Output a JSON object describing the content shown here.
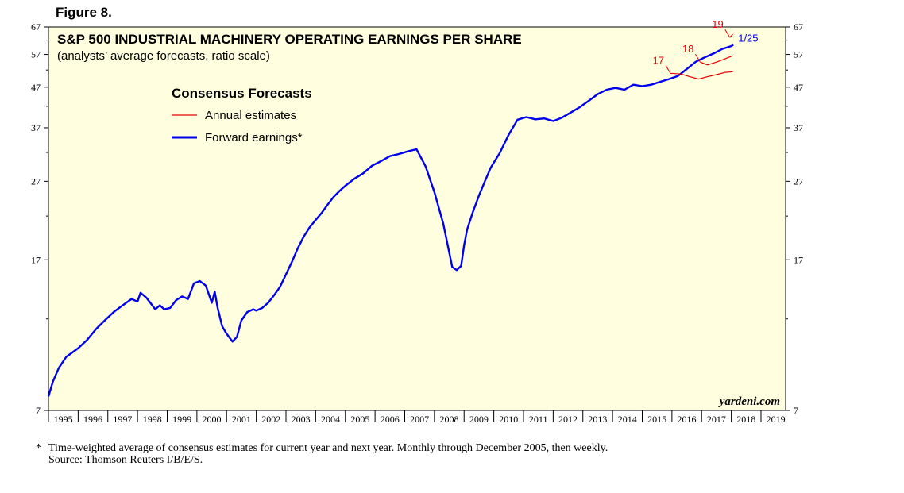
{
  "figure_label": "Figure 8.",
  "footnote": {
    "star": "*",
    "line1": "Time-weighted average of consensus estimates for current year and next year. Monthly through December 2005, then weekly.",
    "line2": "Source: Thomson Reuters I/B/E/S."
  },
  "colors": {
    "background": "#ffffe0",
    "forward": "#0000ee",
    "annual": "#e60000"
  },
  "chart_data": {
    "type": "line",
    "title": "S&P 500 INDUSTRIAL MACHINERY OPERATING EARNINGS PER SHARE",
    "subtitle": "(analysts’ average forecasts, ratio scale)",
    "legend_title": "Consensus Forecasts",
    "legend_position": "top-left",
    "watermark": "yardeni.com",
    "y_scale": "log",
    "ylim": [
      7,
      67
    ],
    "xlim": [
      1995.0,
      2019.83
    ],
    "y_ticks": [
      "7",
      "17",
      "27",
      "37",
      "47",
      "57",
      "67"
    ],
    "x_ticks": [
      "1995",
      "1996",
      "1997",
      "1998",
      "1999",
      "2000",
      "2001",
      "2002",
      "2003",
      "2004",
      "2005",
      "2006",
      "2007",
      "2008",
      "2009",
      "2010",
      "2011",
      "2012",
      "2013",
      "2014",
      "2015",
      "2016",
      "2017",
      "2018",
      "2019"
    ],
    "latest_label": "1/25",
    "series": [
      {
        "name": "Forward earnings*",
        "style": "thick",
        "x": [
          1995.0,
          1995.15,
          1995.35,
          1995.6,
          1996.0,
          1996.3,
          1996.6,
          1996.9,
          1997.2,
          1997.5,
          1997.8,
          1998.0,
          1998.1,
          1998.3,
          1998.6,
          1998.75,
          1998.9,
          1999.1,
          1999.3,
          1999.5,
          1999.7,
          1999.9,
          2000.1,
          2000.3,
          2000.5,
          2000.6,
          2000.7,
          2000.85,
          2001.0,
          2001.2,
          2001.35,
          2001.5,
          2001.7,
          2001.9,
          2002.0,
          2002.2,
          2002.4,
          2002.6,
          2002.8,
          2003.0,
          2003.2,
          2003.4,
          2003.6,
          2003.8,
          2004.0,
          2004.2,
          2004.4,
          2004.6,
          2004.8,
          2005.0,
          2005.3,
          2005.6,
          2005.9,
          2006.2,
          2006.5,
          2006.8,
          2007.1,
          2007.4,
          2007.7,
          2008.0,
          2008.3,
          2008.45,
          2008.6,
          2008.75,
          2008.9,
          2009.0,
          2009.1,
          2009.3,
          2009.5,
          2009.7,
          2009.9,
          2010.2,
          2010.5,
          2010.8,
          2011.1,
          2011.4,
          2011.7,
          2012.0,
          2012.3,
          2012.6,
          2012.9,
          2013.2,
          2013.5,
          2013.8,
          2014.1,
          2014.4,
          2014.7,
          2015.0,
          2015.3,
          2015.6,
          2015.9,
          2016.2,
          2016.5,
          2016.8,
          2017.1,
          2017.4,
          2017.7,
          2018.0,
          2018.07
        ],
        "values": [
          7.6,
          8.3,
          9.0,
          9.6,
          10.1,
          10.6,
          11.3,
          11.9,
          12.5,
          13.0,
          13.5,
          13.3,
          14.0,
          13.6,
          12.7,
          13.0,
          12.7,
          12.8,
          13.4,
          13.7,
          13.5,
          14.8,
          15.0,
          14.6,
          13.2,
          14.1,
          12.8,
          11.5,
          11.0,
          10.5,
          10.8,
          11.9,
          12.5,
          12.7,
          12.6,
          12.8,
          13.2,
          13.8,
          14.5,
          15.6,
          16.8,
          18.2,
          19.5,
          20.6,
          21.5,
          22.4,
          23.5,
          24.6,
          25.5,
          26.3,
          27.4,
          28.3,
          29.6,
          30.4,
          31.3,
          31.7,
          32.2,
          32.6,
          29.5,
          25.3,
          21.0,
          18.5,
          16.3,
          16.0,
          16.4,
          18.5,
          20.3,
          22.6,
          24.8,
          27.0,
          29.3,
          31.9,
          35.5,
          38.8,
          39.4,
          38.9,
          39.1,
          38.5,
          39.3,
          40.5,
          41.8,
          43.4,
          45.1,
          46.3,
          46.8,
          46.3,
          47.7,
          47.3,
          47.7,
          48.5,
          49.3,
          50.2,
          52.3,
          54.6,
          56.0,
          57.3,
          58.9,
          59.9,
          60.3
        ]
      },
      {
        "name": "Annual estimates",
        "style": "thin",
        "segments": [
          {
            "label": "17",
            "x": [
              2015.95,
              2016.3,
              2016.6,
              2016.9,
              2017.2,
              2017.5,
              2017.8,
              2018.05
            ],
            "values": [
              51.0,
              50.8,
              50.0,
              49.3,
              50.0,
              50.6,
              51.3,
              51.5
            ]
          },
          {
            "label": "18",
            "x": [
              2016.95,
              2017.2,
              2017.5,
              2017.8,
              2018.05
            ],
            "values": [
              54.5,
              53.6,
              54.5,
              55.6,
              56.6
            ]
          },
          {
            "label": "19",
            "x": [
              2017.95,
              2018.05
            ],
            "values": [
              63.0,
              64.2
            ]
          }
        ]
      }
    ]
  }
}
